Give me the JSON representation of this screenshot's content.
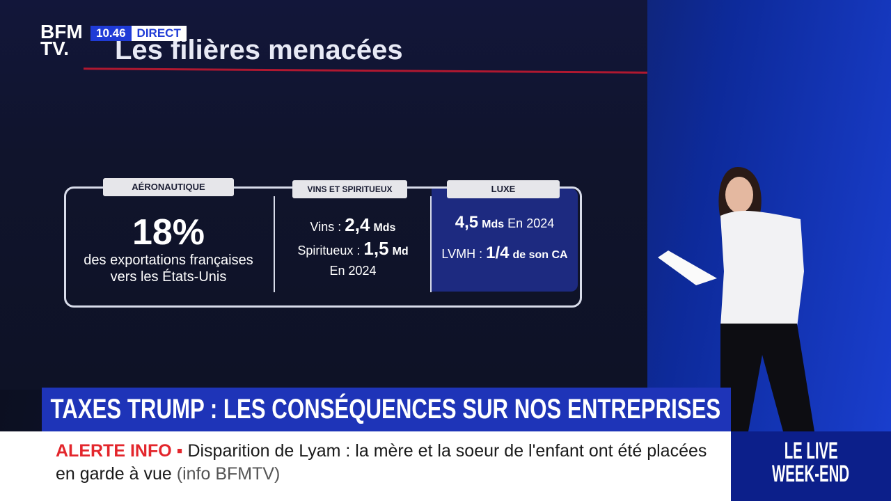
{
  "logo": {
    "line1": "BFM",
    "line2": "TV."
  },
  "clock": {
    "time": "10.46",
    "status": "DIRECT"
  },
  "screen": {
    "title": "Les filières menacées",
    "panels": [
      {
        "label": "AÉRONAUTIQUE",
        "figure": "18%",
        "text": "des exportations françaises vers les États-Unis"
      },
      {
        "label": "VINS ET SPIRITUEUX",
        "rows": [
          {
            "name": "Vins :",
            "amount": "2,4",
            "unit": "Mds"
          },
          {
            "name": "Spiritueux :",
            "amount": "1,5",
            "unit": "Md"
          }
        ],
        "note": "En 2024"
      },
      {
        "label": "LUXE",
        "rows": [
          {
            "amount": "4,5",
            "unit": "Mds",
            "note": "En 2024"
          },
          {
            "name": "LVMH :",
            "amount": "1/4",
            "unit": "de son CA"
          }
        ]
      }
    ]
  },
  "headline": "TAXES TRUMP : LES CONSÉQUENCES SUR NOS ENTREPRISES",
  "ticker": {
    "label": "ALERTE INFO",
    "text": "Disparition de Lyam : la mère et la soeur de l'enfant ont été placées en garde à vue",
    "source": "(info BFMTV)"
  },
  "show": {
    "line1": "LE LIVE",
    "line2": "WEEK-END"
  }
}
